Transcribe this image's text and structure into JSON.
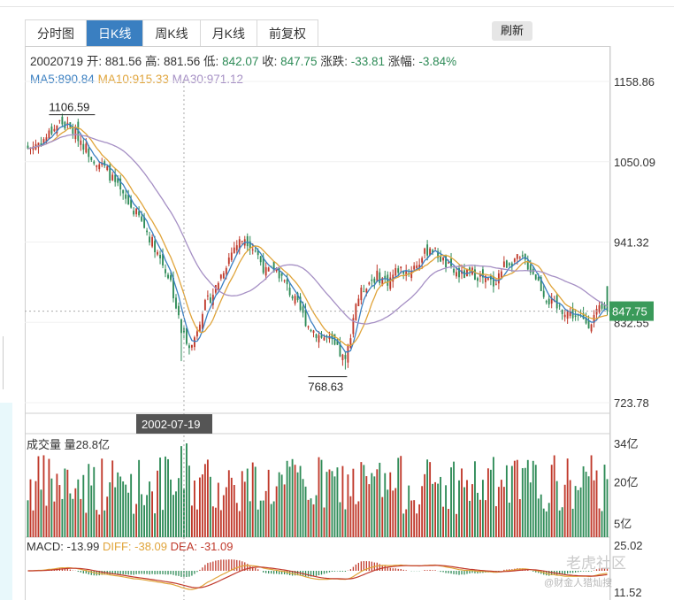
{
  "tabs": [
    {
      "label": "分时图",
      "active": false
    },
    {
      "label": "日K线",
      "active": true
    },
    {
      "label": "周K线",
      "active": false
    },
    {
      "label": "月K线",
      "active": false
    },
    {
      "label": "前复权",
      "active": false
    }
  ],
  "refresh_label": "刷新",
  "quote": {
    "date": "20020719",
    "open_label": "开:",
    "open": "881.56",
    "high_label": "高:",
    "high": "881.56",
    "low_label": "低:",
    "low": "842.07",
    "close_label": "收:",
    "close": "847.75",
    "change_label": "涨跌:",
    "change": "-33.81",
    "pct_label": "涨幅:",
    "pct": "-3.84%"
  },
  "ma": {
    "ma5_label": "MA5:",
    "ma5": "890.84",
    "ma10_label": "MA10:",
    "ma10": "915.33",
    "ma30_label": "MA30:",
    "ma30": "971.12"
  },
  "colors": {
    "up": "#c0392b",
    "down": "#2e8b57",
    "ma5": "#3a7fc1",
    "ma10": "#e0a43a",
    "ma30": "#a58fc4",
    "accent": "#3a7fc1",
    "price_tag": "#3a9a5a"
  },
  "volume": {
    "title": "成交量",
    "label": "量28.8亿",
    "ticks": [
      "34亿",
      "20亿",
      "5亿"
    ]
  },
  "macd": {
    "macd_label": "MACD:",
    "macd": "-13.99",
    "diff_label": "DIFF:",
    "diff": "-38.09",
    "dea_label": "DEA:",
    "dea": "-31.09",
    "ticks": [
      "25.02",
      "11.52"
    ]
  },
  "crosshair": {
    "date": "2002-07-19",
    "price_tag": "847.75"
  },
  "watermark": {
    "text": "老虎社区",
    "sub": "@财金人猎灿搜"
  },
  "chart_data": {
    "type": "candlestick",
    "price_axis_ticks": [
      "1158.86",
      "1050.09",
      "941.32",
      "832.55",
      "723.78"
    ],
    "ylim": [
      723.78,
      1158.86
    ],
    "annotations": [
      {
        "label": "1106.59",
        "type": "high"
      },
      {
        "label": "768.63",
        "type": "low"
      }
    ],
    "anchors": [
      {
        "i": 0,
        "c": 1068
      },
      {
        "i": 6,
        "c": 1080
      },
      {
        "i": 12,
        "c": 1104
      },
      {
        "i": 18,
        "c": 1090
      },
      {
        "i": 24,
        "c": 1058
      },
      {
        "i": 30,
        "c": 1038
      },
      {
        "i": 36,
        "c": 1002
      },
      {
        "i": 42,
        "c": 975
      },
      {
        "i": 48,
        "c": 935
      },
      {
        "i": 54,
        "c": 888
      },
      {
        "i": 58,
        "c": 820
      },
      {
        "i": 62,
        "c": 800
      },
      {
        "i": 66,
        "c": 850
      },
      {
        "i": 70,
        "c": 872
      },
      {
        "i": 74,
        "c": 905
      },
      {
        "i": 78,
        "c": 935
      },
      {
        "i": 82,
        "c": 948
      },
      {
        "i": 86,
        "c": 930
      },
      {
        "i": 90,
        "c": 900
      },
      {
        "i": 94,
        "c": 905
      },
      {
        "i": 98,
        "c": 880
      },
      {
        "i": 102,
        "c": 855
      },
      {
        "i": 106,
        "c": 828
      },
      {
        "i": 110,
        "c": 815
      },
      {
        "i": 114,
        "c": 808
      },
      {
        "i": 118,
        "c": 790
      },
      {
        "i": 120,
        "c": 778
      },
      {
        "i": 124,
        "c": 860
      },
      {
        "i": 128,
        "c": 885
      },
      {
        "i": 132,
        "c": 895
      },
      {
        "i": 136,
        "c": 888
      },
      {
        "i": 140,
        "c": 905
      },
      {
        "i": 144,
        "c": 902
      },
      {
        "i": 148,
        "c": 915
      },
      {
        "i": 152,
        "c": 935
      },
      {
        "i": 156,
        "c": 920
      },
      {
        "i": 160,
        "c": 902
      },
      {
        "i": 164,
        "c": 896
      },
      {
        "i": 168,
        "c": 900
      },
      {
        "i": 172,
        "c": 892
      },
      {
        "i": 176,
        "c": 885
      },
      {
        "i": 180,
        "c": 910
      },
      {
        "i": 184,
        "c": 918
      },
      {
        "i": 188,
        "c": 915
      },
      {
        "i": 192,
        "c": 895
      },
      {
        "i": 196,
        "c": 865
      },
      {
        "i": 200,
        "c": 852
      },
      {
        "i": 204,
        "c": 848
      },
      {
        "i": 208,
        "c": 838
      },
      {
        "i": 212,
        "c": 832
      },
      {
        "i": 216,
        "c": 848
      },
      {
        "i": 219,
        "c": 847.75
      }
    ]
  }
}
